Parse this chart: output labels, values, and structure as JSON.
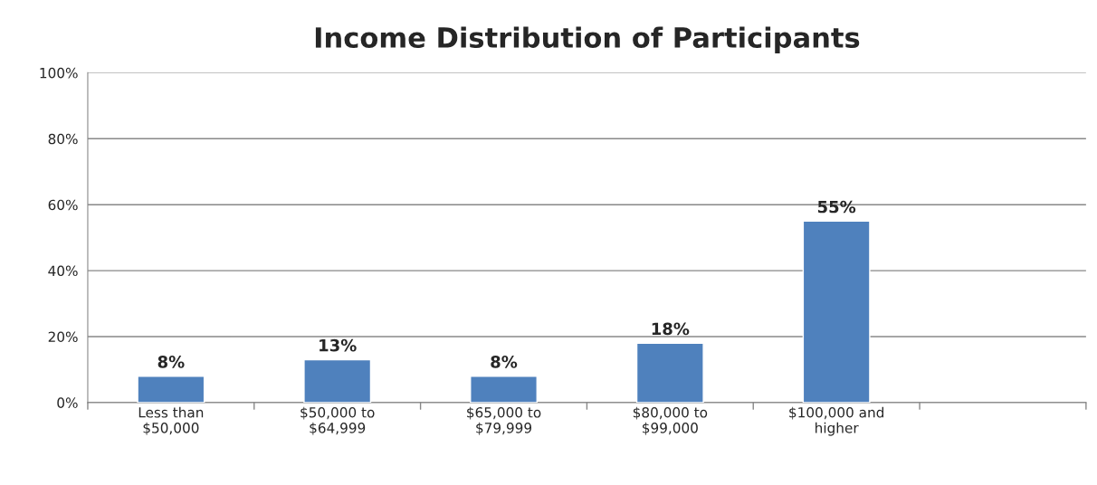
{
  "chart_data": {
    "type": "bar",
    "title": "Income Distribution of Participants",
    "categories": [
      "Less than\n$50,000",
      "$50,000 to\n$64,999",
      "$65,000 to\n$79,999",
      "$80,000 to\n$99,000",
      "$100,000 and\nhigher",
      null
    ],
    "values": [
      8,
      13,
      8,
      18,
      55,
      null
    ],
    "value_labels": [
      "8%",
      "13%",
      "8%",
      "18%",
      "55%",
      null
    ],
    "color": "#4f81bd",
    "ylim": [
      0,
      100
    ],
    "yticks": [
      {
        "value": 0,
        "label": "0%"
      },
      {
        "value": 20,
        "label": "20%"
      },
      {
        "value": 40,
        "label": "40%"
      },
      {
        "value": 60,
        "label": "60%"
      },
      {
        "value": 80,
        "label": "80%"
      },
      {
        "value": 100,
        "label": "100%"
      }
    ],
    "grid": "y",
    "legend": false
  }
}
